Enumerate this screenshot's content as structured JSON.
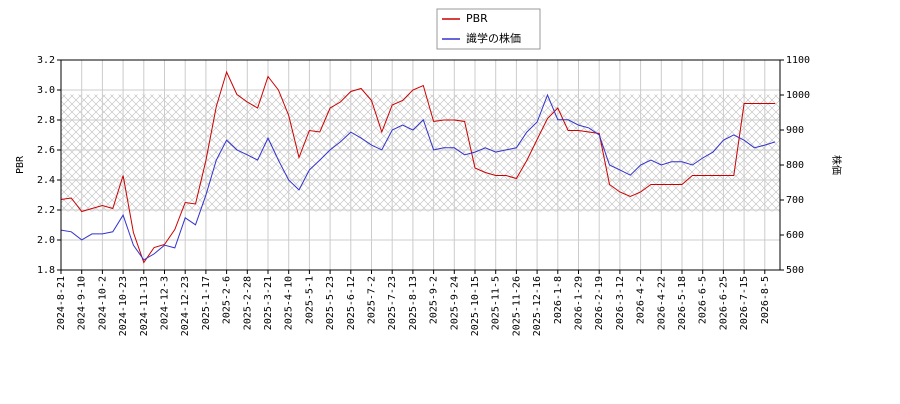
{
  "chart_data": {
    "type": "line",
    "y_label": "PBR",
    "y2_label": "株価",
    "categories": [
      "2024-8-21",
      null,
      "2024-9-10",
      null,
      "2024-10-2",
      null,
      "2024-10-23",
      null,
      "2024-11-13",
      null,
      "2024-12-3",
      null,
      "2024-12-23",
      null,
      "2025-1-17",
      null,
      "2025-2-6",
      null,
      "2025-2-28",
      null,
      "2025-3-21",
      null,
      "2025-4-10",
      null,
      "2025-5-1",
      null,
      "2025-5-23",
      null,
      "2025-6-12",
      null,
      "2025-7-2",
      null,
      "2025-7-23",
      null,
      "2025-8-13",
      null,
      "2025-9-2",
      null,
      "2025-9-24",
      null,
      "2025-10-15",
      null,
      "2025-11-5",
      null,
      "2025-11-26",
      null,
      "2025-12-16",
      null,
      "2026-1-8",
      null,
      "2026-1-29",
      null,
      "2026-2-19",
      null,
      "2026-3-12",
      null,
      "2026-4-2",
      null,
      "2026-4-22",
      null,
      "2026-5-18",
      null,
      "2026-6-5",
      null,
      "2026-6-25",
      null,
      "2026-7-15",
      null,
      "2026-8-5",
      null
    ],
    "series": [
      {
        "name": "PBR",
        "color": "#cc0000",
        "axis": "y",
        "values": [
          2.27,
          2.28,
          2.19,
          2.21,
          2.23,
          2.21,
          2.43,
          2.05,
          1.85,
          1.95,
          1.97,
          2.07,
          2.25,
          2.24,
          2.53,
          2.89,
          3.12,
          2.97,
          2.92,
          2.88,
          3.09,
          3.0,
          2.83,
          2.55,
          2.73,
          2.72,
          2.88,
          2.92,
          2.99,
          3.01,
          2.93,
          2.72,
          2.9,
          2.93,
          3.0,
          3.03,
          2.79,
          2.8,
          2.8,
          2.79,
          2.48,
          2.45,
          2.43,
          2.43,
          2.41,
          2.53,
          2.67,
          2.81,
          2.88,
          2.73,
          2.73,
          2.72,
          2.71,
          2.37,
          2.32,
          2.29,
          2.32,
          2.37,
          2.37,
          2.37,
          2.37,
          2.43,
          2.43,
          2.43,
          2.43,
          2.43,
          2.91,
          2.91,
          2.91,
          2.91
        ]
      },
      {
        "name": "識学の株価",
        "color": "#3333cc",
        "axis": "y2",
        "values": [
          614,
          609,
          586,
          603,
          603,
          609,
          657,
          571,
          529,
          546,
          571,
          563,
          649,
          629,
          714,
          814,
          871,
          843,
          829,
          814,
          877,
          814,
          757,
          729,
          786,
          814,
          843,
          866,
          894,
          877,
          857,
          843,
          900,
          914,
          900,
          929,
          843,
          849,
          849,
          829,
          837,
          849,
          837,
          843,
          849,
          894,
          923,
          1000,
          929,
          929,
          914,
          906,
          886,
          800,
          786,
          771,
          800,
          814,
          800,
          809,
          809,
          800,
          820,
          837,
          871,
          886,
          871,
          849,
          857,
          866
        ]
      }
    ],
    "ylim": [
      1.8,
      3.2
    ],
    "yticks": [
      1.8,
      {
        "value": 2,
        "label": "2.0"
      },
      2.2,
      2.4,
      2.6,
      2.8,
      {
        "value": 3,
        "label": "3.0"
      },
      3.2
    ],
    "y2lim": [
      500,
      1100
    ],
    "y2ticks": [
      500,
      600,
      700,
      800,
      900,
      1000,
      1100
    ],
    "band": [
      2.19,
      2.97
    ],
    "grid": true
  }
}
